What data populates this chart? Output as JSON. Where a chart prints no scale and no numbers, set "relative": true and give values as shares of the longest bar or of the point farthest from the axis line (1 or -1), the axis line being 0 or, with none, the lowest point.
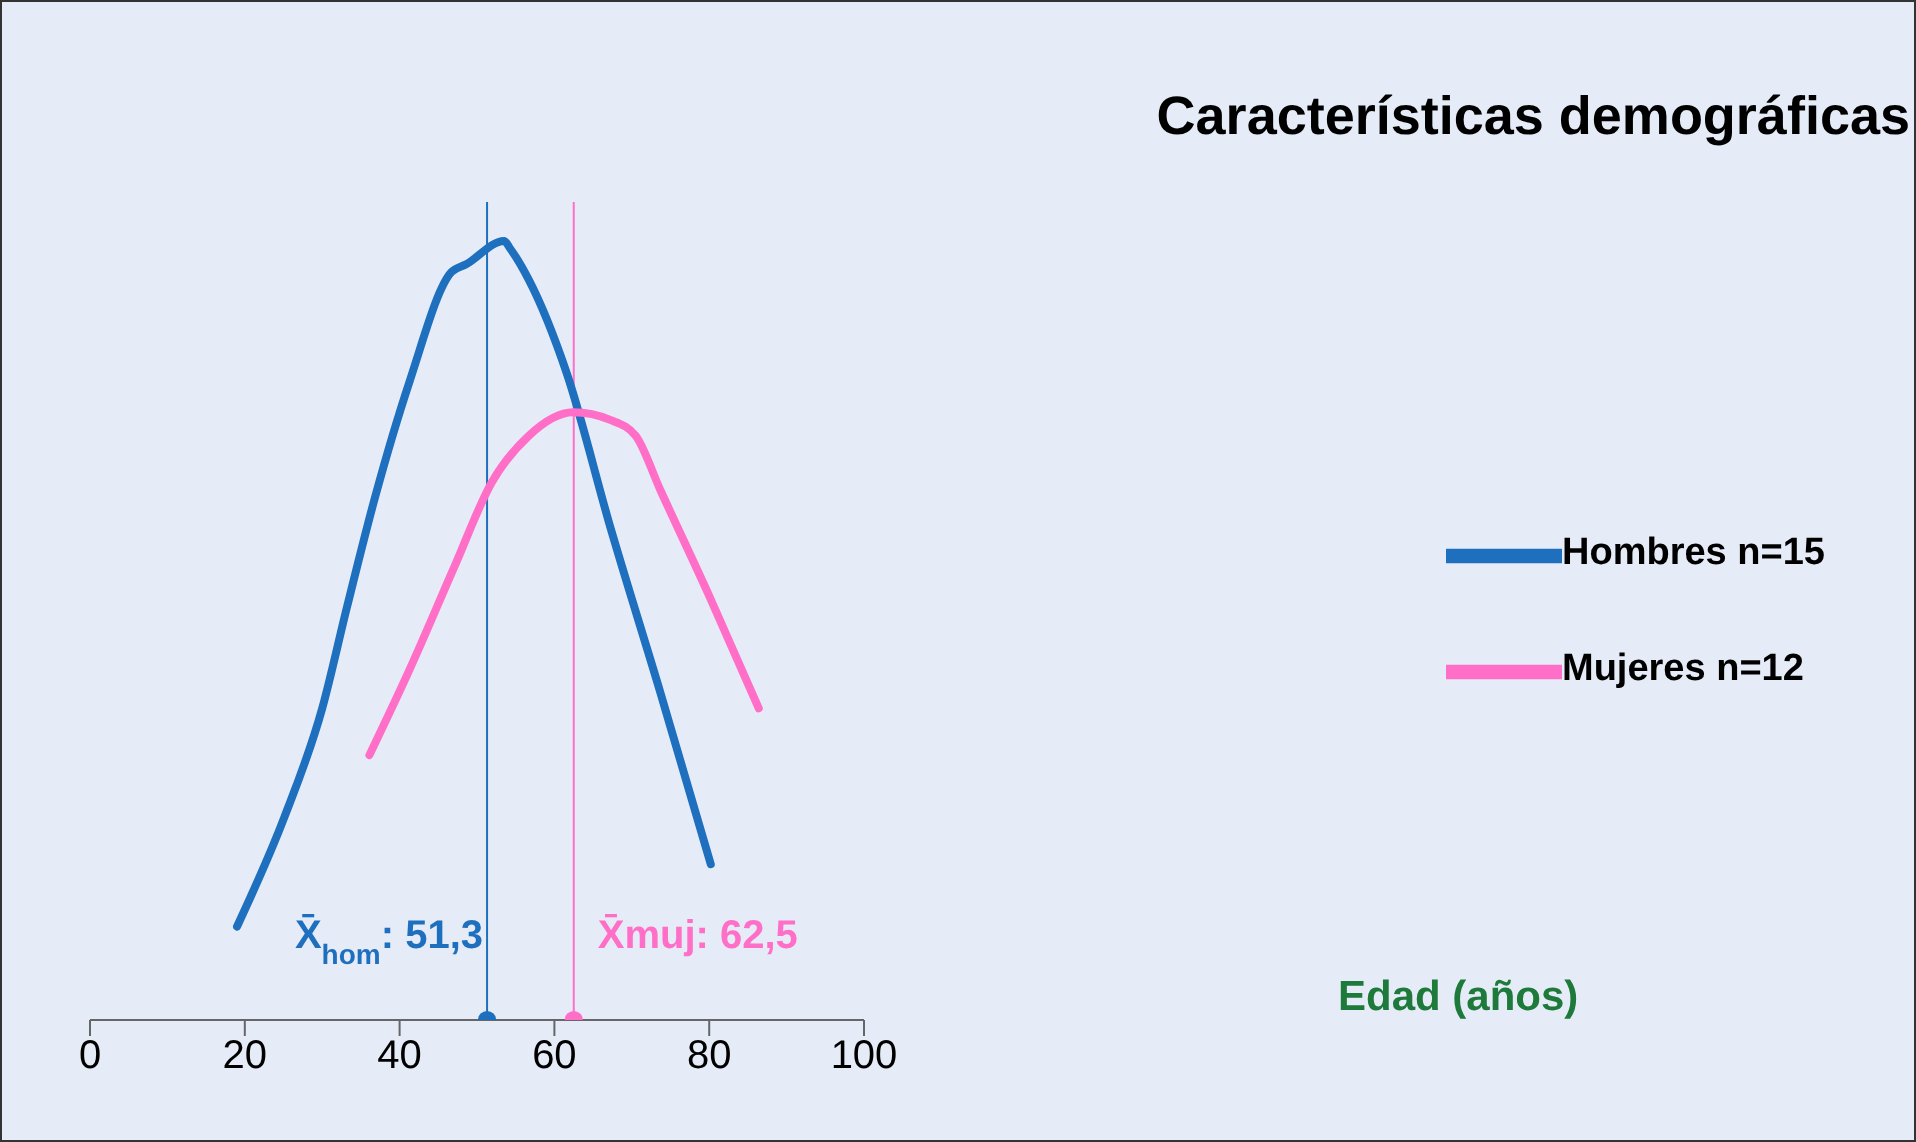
{
  "chart_data": {
    "type": "line",
    "title": "Características demográficas",
    "annotations": [
      "Edad (años)"
    ],
    "relative": true,
    "xlim": [
      0,
      100
    ],
    "xticks": [
      0,
      20,
      40,
      60,
      80,
      100
    ],
    "legend": "right",
    "line_style": "solid",
    "series": [
      {
        "name": "Hombres n=15",
        "color": "#1f6fbf",
        "x": [
          19.0,
          25.1,
          30.0,
          33.2,
          36.8,
          41.3,
          46.7,
          48.6,
          53.5,
          54.3,
          56.7,
          61.6,
          67.3,
          73.7,
          80.2
        ],
        "values": [
          0.12,
          0.26,
          0.4,
          0.53,
          0.67,
          0.82,
          0.96,
          0.97,
          1.0,
          0.99,
          0.95,
          0.83,
          0.63,
          0.42,
          0.2
        ]
      },
      {
        "name": "Mujeres n=12",
        "color": "#ff6ec7",
        "x": [
          36.1,
          41.3,
          47.0,
          51.9,
          56.7,
          62.4,
          67.3,
          70.5,
          73.7,
          80.2,
          86.4
        ],
        "values": [
          0.34,
          0.45,
          0.58,
          0.69,
          0.75,
          0.78,
          0.77,
          0.75,
          0.68,
          0.54,
          0.4
        ]
      },
      {
        "type": "scatter",
        "marker": "circle",
        "color": "#1f6fbf",
        "x": [
          51.3
        ],
        "values": [
          0
        ]
      },
      {
        "type": "scatter",
        "marker": "circle",
        "color": "#ff6ec7",
        "x": [
          62.5
        ],
        "values": [
          0
        ]
      }
    ],
    "ref_lines": [
      {
        "axis": "x",
        "value": 51.3,
        "label": "X̄$_{hom}$: 51,3",
        "color": "#1f6fbf"
      },
      {
        "axis": "x",
        "value": 62.5,
        "label": "X̄muj: 62,5",
        "color": "#ff6ec7"
      }
    ]
  }
}
